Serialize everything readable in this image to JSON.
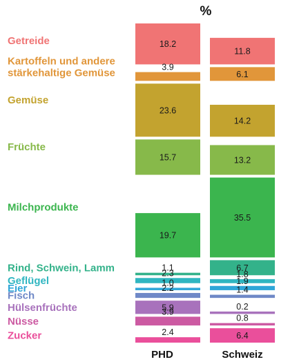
{
  "chart_data": {
    "type": "bar",
    "variant": "stacked-blocks",
    "title": "%",
    "columns": [
      "PHD",
      "Schweiz"
    ],
    "series": [
      {
        "name": "Getreide",
        "label_lines": [
          "Getreide"
        ],
        "color": "#f07474",
        "values": [
          18.2,
          11.8
        ]
      },
      {
        "name": "Kartoffeln und andere stärkehaltige Gemüse",
        "label_lines": [
          "Kartoffeln und andere",
          "stärkehaltige Gemüse"
        ],
        "color": "#e1963a",
        "values": [
          3.9,
          6.1
        ]
      },
      {
        "name": "Gemüse",
        "label_lines": [
          "Gemüse"
        ],
        "color": "#c3a32f",
        "values": [
          23.6,
          14.2
        ]
      },
      {
        "name": "Früchte",
        "label_lines": [
          "Früchte"
        ],
        "color": "#87b94a",
        "values": [
          15.7,
          13.2
        ]
      },
      {
        "name": "Milchprodukte",
        "label_lines": [
          "Milchprodukte"
        ],
        "color": "#3bb54e",
        "values": [
          19.7,
          35.5
        ]
      },
      {
        "name": "Rind, Schwein, Lamm",
        "label_lines": [
          "Rind, Schwein, Lamm"
        ],
        "color": "#33b28a",
        "values": [
          1.1,
          6.7
        ]
      },
      {
        "name": "Geflügel",
        "label_lines": [
          "Geflügel"
        ],
        "color": "#30b6c1",
        "values": [
          2.3,
          1.8
        ]
      },
      {
        "name": "Eier",
        "label_lines": [
          "Eier"
        ],
        "color": "#2fa6d8",
        "values": [
          1.0,
          1.9
        ]
      },
      {
        "name": "Fisch",
        "label_lines": [
          "Fisch"
        ],
        "color": "#6f89c7",
        "values": [
          2.2,
          1.4
        ]
      },
      {
        "name": "Hülsenfrüchte",
        "label_lines": [
          "Hülsenfrüchte"
        ],
        "color": "#a872bc",
        "values": [
          5.9,
          0.2
        ]
      },
      {
        "name": "Nüsse",
        "label_lines": [
          "Nüsse"
        ],
        "color": "#cc5aa2",
        "values": [
          3.9,
          0.8
        ]
      },
      {
        "name": "Zucker",
        "label_lines": [
          "Zucker"
        ],
        "color": "#ea4f9b",
        "values": [
          2.4,
          6.4
        ]
      }
    ]
  }
}
